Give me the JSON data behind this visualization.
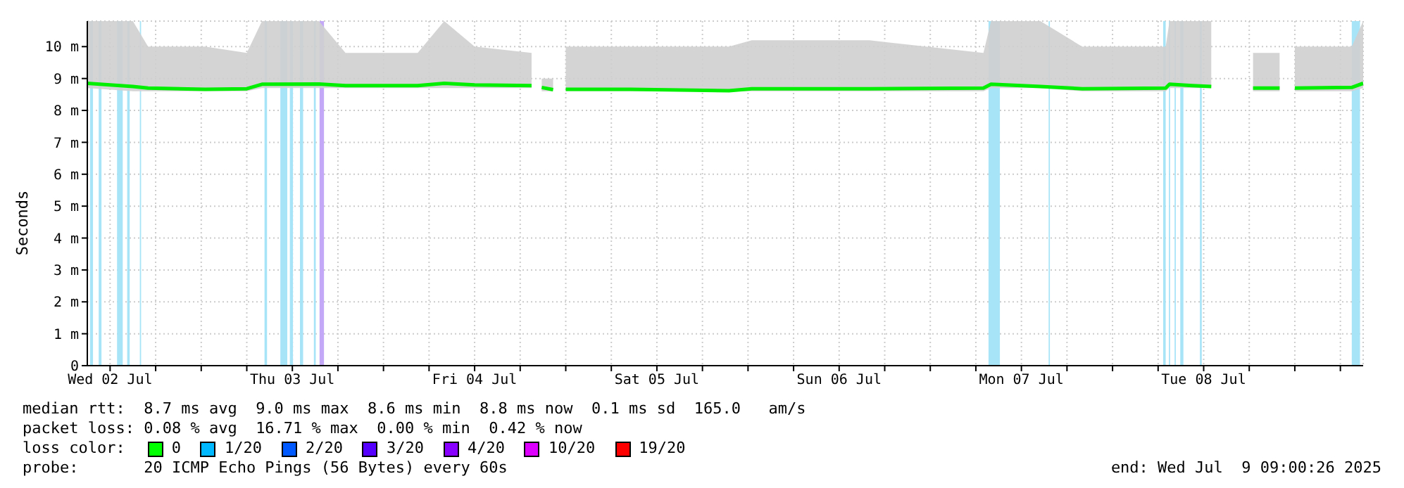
{
  "chart_data": {
    "type": "line",
    "ylabel": "Seconds",
    "x": [
      "2025-07-02T09:00",
      "2025-07-02T15:00",
      "2025-07-02T17:00",
      "2025-07-03T00:30",
      "2025-07-03T06:00",
      "2025-07-03T08:00",
      "2025-07-03T15:30",
      "2025-07-03T19:00",
      "2025-07-04T04:30",
      "2025-07-04T08:00",
      "2025-07-04T12:00",
      "2025-07-04T19:30",
      "2025-07-04T20:30",
      "2025-07-04T20:50",
      "2025-07-04T22:20",
      "2025-07-04T23:00",
      "2025-07-05T00:00",
      "2025-07-05T08:30",
      "2025-07-05T21:30",
      "2025-07-06T00:30",
      "2025-07-06T16:00",
      "2025-07-07T07:00",
      "2025-07-07T08:00",
      "2025-07-07T14:30",
      "2025-07-07T20:00",
      "2025-07-08T07:00",
      "2025-07-08T07:30",
      "2025-07-08T10:30",
      "2025-07-08T13:00",
      "2025-07-08T15:00",
      "2025-07-08T18:30",
      "2025-07-08T22:00",
      "2025-07-08T23:00",
      "2025-07-09T00:00",
      "2025-07-09T07:30",
      "2025-07-09T09:00"
    ],
    "series": [
      {
        "color": "#00ee00",
        "values": [
          8.85,
          8.75,
          8.7,
          8.66,
          8.68,
          8.82,
          8.83,
          8.78,
          8.78,
          8.85,
          8.8,
          8.78,
          null,
          8.72,
          8.65,
          null,
          8.66,
          8.66,
          8.62,
          8.68,
          8.68,
          8.7,
          8.82,
          8.75,
          8.68,
          8.7,
          8.82,
          8.78,
          8.75,
          null,
          8.7,
          8.7,
          null,
          8.7,
          8.72,
          8.85
        ],
        "lower": [
          8.7,
          8.6,
          8.6,
          8.6,
          8.6,
          8.7,
          8.7,
          8.7,
          8.7,
          8.7,
          8.7,
          8.7,
          null,
          8.6,
          8.6,
          null,
          8.6,
          8.6,
          8.6,
          8.6,
          8.6,
          8.6,
          8.7,
          8.7,
          8.6,
          8.6,
          8.7,
          8.7,
          8.7,
          null,
          8.6,
          8.6,
          null,
          8.6,
          8.6,
          8.7
        ],
        "upper": [
          10.8,
          10.8,
          10,
          10,
          9.8,
          10.8,
          10.8,
          9.8,
          9.8,
          10.8,
          10,
          9.8,
          null,
          9,
          9,
          null,
          10,
          10,
          10,
          10.2,
          10.2,
          9.8,
          10.8,
          10.8,
          10,
          10,
          10.8,
          10.8,
          10.8,
          null,
          9.8,
          9.8,
          null,
          10,
          10,
          10.8
        ]
      }
    ],
    "xlim": [
      "2025-07-02T09:00",
      "2025-07-09T09:00"
    ],
    "xticks": [
      {
        "value": "2025-07-02T12:00",
        "label": "Wed 02 Jul"
      },
      {
        "value": "2025-07-02T18:00",
        "label": null
      },
      {
        "value": "2025-07-03T00:00",
        "label": null
      },
      {
        "value": "2025-07-03T06:00",
        "label": null
      },
      {
        "value": "2025-07-03T12:00",
        "label": "Thu 03 Jul"
      },
      {
        "value": "2025-07-03T18:00",
        "label": null
      },
      {
        "value": "2025-07-04T00:00",
        "label": null
      },
      {
        "value": "2025-07-04T06:00",
        "label": null
      },
      {
        "value": "2025-07-04T12:00",
        "label": "Fri 04 Jul"
      },
      {
        "value": "2025-07-04T18:00",
        "label": null
      },
      {
        "value": "2025-07-05T00:00",
        "label": null
      },
      {
        "value": "2025-07-05T06:00",
        "label": null
      },
      {
        "value": "2025-07-05T12:00",
        "label": "Sat 05 Jul"
      },
      {
        "value": "2025-07-05T18:00",
        "label": null
      },
      {
        "value": "2025-07-06T00:00",
        "label": null
      },
      {
        "value": "2025-07-06T06:00",
        "label": null
      },
      {
        "value": "2025-07-06T12:00",
        "label": "Sun 06 Jul"
      },
      {
        "value": "2025-07-06T18:00",
        "label": null
      },
      {
        "value": "2025-07-07T00:00",
        "label": null
      },
      {
        "value": "2025-07-07T06:00",
        "label": null
      },
      {
        "value": "2025-07-07T12:00",
        "label": "Mon 07 Jul"
      },
      {
        "value": "2025-07-07T18:00",
        "label": null
      },
      {
        "value": "2025-07-08T00:00",
        "label": null
      },
      {
        "value": "2025-07-08T06:00",
        "label": null
      },
      {
        "value": "2025-07-08T12:00",
        "label": "Tue 08 Jul"
      },
      {
        "value": "2025-07-08T18:00",
        "label": null
      },
      {
        "value": "2025-07-09T00:00",
        "label": null
      },
      {
        "value": "2025-07-09T06:00",
        "label": null
      }
    ],
    "ylim": [
      0,
      10.8
    ],
    "yticks": [
      0,
      {
        "value": 1,
        "label": "1 m"
      },
      {
        "value": 2,
        "label": "2 m"
      },
      {
        "value": 3,
        "label": "3 m"
      },
      {
        "value": 4,
        "label": "4 m"
      },
      {
        "value": 5,
        "label": "5 m"
      },
      {
        "value": 6,
        "label": "6 m"
      },
      {
        "value": 7,
        "label": "7 m"
      },
      {
        "value": 8,
        "label": "8 m"
      },
      {
        "value": 9,
        "label": "9 m"
      },
      {
        "value": 10,
        "label": "10 m"
      }
    ],
    "grid": true,
    "marker": "none",
    "line_style": "solid",
    "bands": [
      {
        "axis": "x",
        "from": "2025-07-02T09:22",
        "to": "2025-07-02T09:45",
        "color": "#a8e4f8"
      },
      {
        "axis": "x",
        "from": "2025-07-02T10:30",
        "to": "2025-07-02T10:52",
        "color": "#a8e4f8"
      },
      {
        "axis": "x",
        "from": "2025-07-02T12:55",
        "to": "2025-07-02T13:40",
        "color": "#a8e4f8"
      },
      {
        "axis": "x",
        "from": "2025-07-02T14:15",
        "to": "2025-07-02T14:35",
        "color": "#a8e4f8"
      },
      {
        "axis": "x",
        "from": "2025-07-02T15:55",
        "to": "2025-07-02T16:05",
        "color": "#a8e4f8"
      },
      {
        "axis": "x",
        "from": "2025-07-03T08:20",
        "to": "2025-07-03T08:40",
        "color": "#a8e4f8"
      },
      {
        "axis": "x",
        "from": "2025-07-03T10:25",
        "to": "2025-07-03T11:20",
        "color": "#a8e4f8"
      },
      {
        "axis": "x",
        "from": "2025-07-03T11:40",
        "to": "2025-07-03T12:05",
        "color": "#a8e4f8"
      },
      {
        "axis": "x",
        "from": "2025-07-03T13:00",
        "to": "2025-07-03T13:25",
        "color": "#a8e4f8"
      },
      {
        "axis": "x",
        "from": "2025-07-03T14:50",
        "to": "2025-07-03T15:05",
        "color": "#a8e4f8"
      },
      {
        "axis": "x",
        "from": "2025-07-03T15:35",
        "to": "2025-07-03T16:10",
        "color": "#c4a8f8"
      },
      {
        "axis": "x",
        "from": "2025-07-07T07:40",
        "to": "2025-07-07T09:10",
        "color": "#a8e4f8"
      },
      {
        "axis": "x",
        "from": "2025-07-07T15:35",
        "to": "2025-07-07T15:45",
        "color": "#a8e4f8"
      },
      {
        "axis": "x",
        "from": "2025-07-08T06:40",
        "to": "2025-07-08T07:00",
        "color": "#a8e4f8"
      },
      {
        "axis": "x",
        "from": "2025-07-08T07:25",
        "to": "2025-07-08T07:35",
        "color": "#a8e4f8"
      },
      {
        "axis": "x",
        "from": "2025-07-08T08:10",
        "to": "2025-07-08T08:20",
        "color": "#a8e4f8"
      },
      {
        "axis": "x",
        "from": "2025-07-08T08:55",
        "to": "2025-07-08T09:20",
        "color": "#a8e4f8"
      },
      {
        "axis": "x",
        "from": "2025-07-08T11:30",
        "to": "2025-07-08T11:45",
        "color": "#a8e4f8"
      },
      {
        "axis": "x",
        "from": "2025-07-09T07:30",
        "to": "2025-07-09T08:35",
        "color": "#a8e4f8"
      }
    ],
    "annotations": [
      "median rtt:  8.7 ms avg  9.0 ms max  8.6 ms min  8.8 ms now  0.1 ms sd  165.0   am/s",
      "packet loss: 0.08 % avg  16.71 % max  0.00 % min  0.42 % now",
      "loss color:",
      "0",
      "1/20",
      "2/20",
      "3/20",
      "4/20",
      "10/20",
      "19/20",
      "probe:       20 ICMP Echo Pings (56 Bytes) every 60s",
      "end: Wed Jul  9 09:00:26 2025"
    ]
  }
}
